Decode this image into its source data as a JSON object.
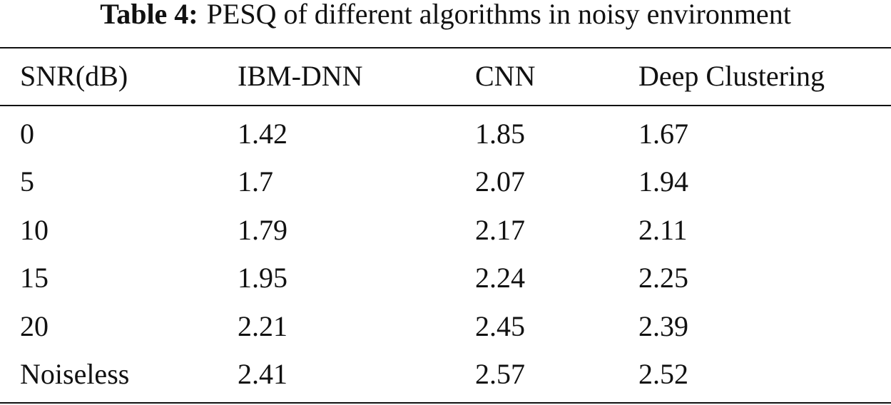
{
  "caption": {
    "label": "Table 4:",
    "text": "PESQ of different algorithms in noisy environment"
  },
  "table": {
    "header": [
      "SNR(dB)",
      "IBM-DNN",
      "CNN",
      "Deep Clustering"
    ],
    "rows": [
      [
        0,
        1.42,
        1.85,
        1.67
      ],
      [
        5,
        1.7,
        2.07,
        1.94
      ],
      [
        10,
        1.79,
        2.17,
        2.11
      ],
      [
        15,
        1.95,
        2.24,
        2.25
      ],
      [
        20,
        2.21,
        2.45,
        2.39
      ],
      [
        "Noiseless",
        2.41,
        2.57,
        2.52
      ]
    ]
  }
}
